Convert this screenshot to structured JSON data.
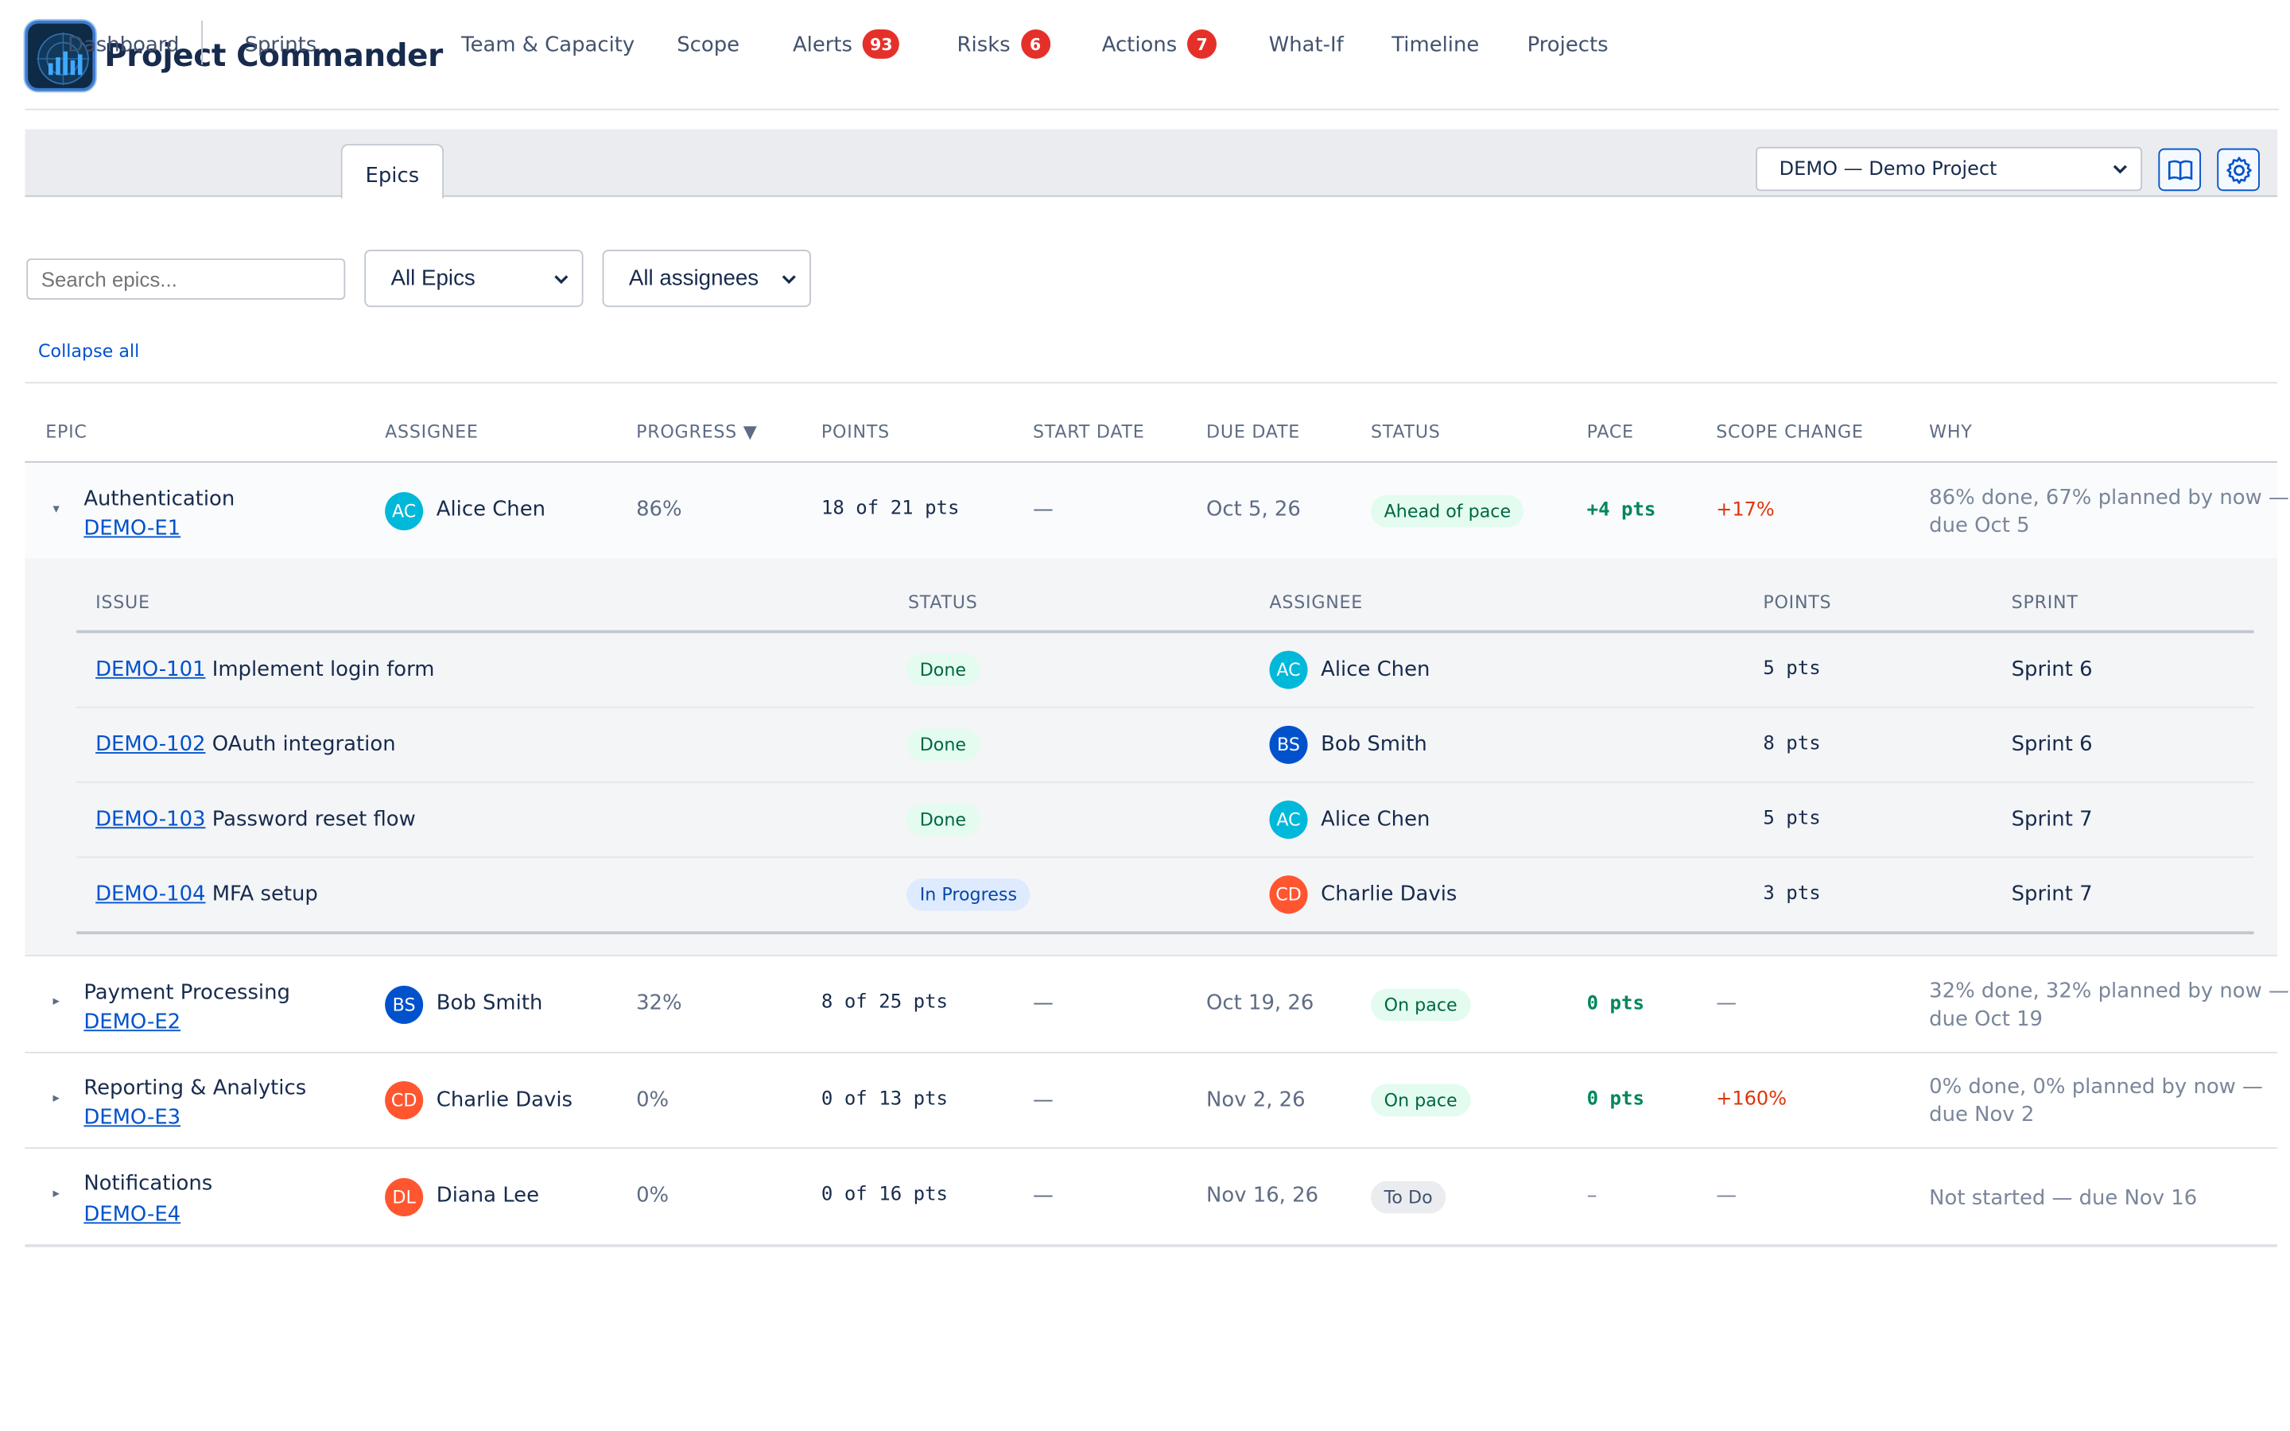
{
  "app": {
    "title": "Project Commander"
  },
  "tabs": [
    {
      "label": "Dashboard"
    },
    {
      "label": "Sprints"
    },
    {
      "label": "Epics",
      "active": true
    },
    {
      "label": "Team & Capacity"
    },
    {
      "label": "Scope"
    },
    {
      "label": "Alerts",
      "badge": "93"
    },
    {
      "label": "Risks",
      "badge": "6"
    },
    {
      "label": "Actions",
      "badge": "7"
    },
    {
      "label": "What-If"
    },
    {
      "label": "Timeline"
    },
    {
      "label": "Projects"
    }
  ],
  "project_select": {
    "value": "DEMO — Demo Project"
  },
  "toolbar": {
    "docs_icon": "book-icon",
    "settings_icon": "gear-icon"
  },
  "filters": {
    "search_placeholder": "Search epics...",
    "epic_filter": "All Epics",
    "assignee_filter": "All assignees",
    "collapse_label": "Collapse all"
  },
  "epic_table": {
    "headers": {
      "epic": "EPIC",
      "assignee": "ASSIGNEE",
      "progress": "PROGRESS ▼",
      "points": "POINTS",
      "start": "START DATE",
      "due": "DUE DATE",
      "status": "STATUS",
      "pace": "PACE",
      "scope": "SCOPE CHANGE",
      "why": "WHY"
    },
    "rows": [
      {
        "expanded": true,
        "caret": "▾",
        "name": "Authentication",
        "key": "DEMO-E1",
        "initials": "AC",
        "avatar_color": "#00b8d9",
        "assignee": "Alice Chen",
        "progress": "86%",
        "points": "18 of 21 pts",
        "start": "—",
        "due": "Oct 5, 26",
        "status": "Ahead of pace",
        "status_kind": "green",
        "pace": "+4 pts",
        "scope": "+17%",
        "why_1": "86% done, 67% planned by now —",
        "why_2": "due Oct 5"
      },
      {
        "expanded": false,
        "caret": "▸",
        "name": "Payment Processing",
        "key": "DEMO-E2",
        "initials": "BS",
        "avatar_color": "#0052cc",
        "assignee": "Bob Smith",
        "progress": "32%",
        "points": "8 of 25 pts",
        "start": "—",
        "due": "Oct 19, 26",
        "status": "On pace",
        "status_kind": "green",
        "pace": "0 pts",
        "scope": "—",
        "why_1": "32% done, 32% planned by now —",
        "why_2": "due Oct 19"
      },
      {
        "expanded": false,
        "caret": "▸",
        "name": "Reporting & Analytics",
        "key": "DEMO-E3",
        "initials": "CD",
        "avatar_color": "#ff5630",
        "assignee": "Charlie Davis",
        "progress": "0%",
        "points": "0 of 13 pts",
        "start": "—",
        "due": "Nov 2, 26",
        "status": "On pace",
        "status_kind": "green",
        "pace": "0 pts",
        "scope": "+160%",
        "why_1": "0% done, 0% planned by now —",
        "why_2": "due Nov 2"
      },
      {
        "expanded": false,
        "caret": "▸",
        "name": "Notifications",
        "key": "DEMO-E4",
        "initials": "DL",
        "avatar_color": "#ff5630",
        "assignee": "Diana Lee",
        "progress": "0%",
        "points": "0 of 16 pts",
        "start": "—",
        "due": "Nov 16, 26",
        "status": "To Do",
        "status_kind": "gray",
        "pace": "–",
        "scope": "—",
        "why_1": "Not started — due Nov 16",
        "why_2": ""
      }
    ]
  },
  "issue_table": {
    "headers": {
      "issue": "ISSUE",
      "status": "STATUS",
      "assignee": "ASSIGNEE",
      "points": "POINTS",
      "sprint": "SPRINT"
    },
    "rows": [
      {
        "key": "DEMO-101",
        "summary": "Implement login form",
        "status": "Done",
        "initials": "AC",
        "assignee": "Alice Chen",
        "points": "5 pts",
        "sprint": "Sprint 6"
      },
      {
        "key": "DEMO-102",
        "summary": "OAuth integration",
        "status": "Done",
        "initials": "BS",
        "assignee": "Bob Smith",
        "points": "8 pts",
        "sprint": "Sprint 6"
      },
      {
        "key": "DEMO-103",
        "summary": "Password reset flow",
        "status": "Done",
        "initials": "AC",
        "assignee": "Alice Chen",
        "points": "5 pts",
        "sprint": "Sprint 7"
      },
      {
        "key": "DEMO-104",
        "summary": "MFA setup",
        "status": "In Progress",
        "initials": "CD",
        "assignee": "Charlie Davis",
        "points": "3 pts",
        "sprint": "Sprint 7"
      }
    ]
  }
}
